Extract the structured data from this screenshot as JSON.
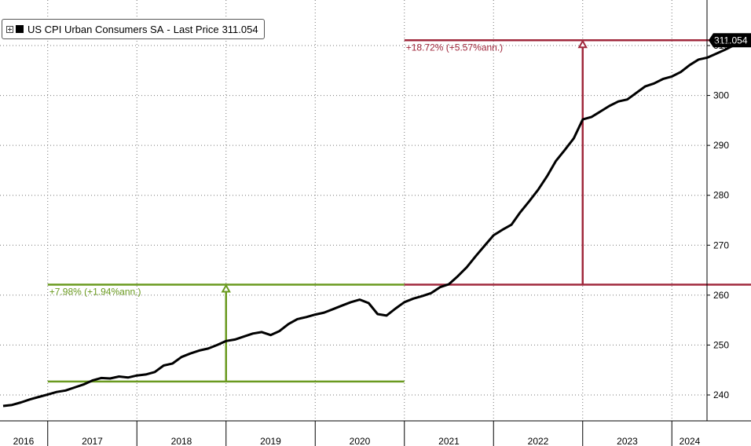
{
  "legend": {
    "series_name": "US CPI Urban Consumers SA",
    "separator": "-",
    "price_label": "Last Price",
    "price_value": "311.054",
    "swatch_color": "#000000"
  },
  "chart_data": {
    "type": "line",
    "title": "",
    "xlabel": "",
    "ylabel": "",
    "ylim": [
      238,
      315
    ],
    "xlim": [
      2016.0,
      2024.38
    ],
    "y_ticks": [
      240,
      250,
      260,
      270,
      280,
      290,
      300,
      310
    ],
    "y_tick_labels": [
      "240",
      "250",
      "260",
      "270",
      "280",
      "290",
      "300",
      "310"
    ],
    "x_ticks": [
      2016,
      2017,
      2018,
      2019,
      2020,
      2021,
      2022,
      2023,
      2024
    ],
    "x_tick_labels": [
      "2016",
      "2017",
      "2018",
      "2019",
      "2020",
      "2021",
      "2022",
      "2023",
      "2024"
    ],
    "grid": true,
    "legend_position": "top-left",
    "last_price": "311.054",
    "series": [
      {
        "name": "US CPI Urban Consumers SA",
        "color": "#000000",
        "x": [
          2016.0,
          2016.1,
          2016.2,
          2016.3,
          2016.4,
          2016.5,
          2016.6,
          2016.7,
          2016.8,
          2016.9,
          2017.0,
          2017.1,
          2017.2,
          2017.3,
          2017.4,
          2017.5,
          2017.6,
          2017.7,
          2017.8,
          2017.9,
          2018.0,
          2018.1,
          2018.2,
          2018.3,
          2018.4,
          2018.5,
          2018.6,
          2018.7,
          2018.8,
          2018.9,
          2019.0,
          2019.1,
          2019.2,
          2019.3,
          2019.4,
          2019.5,
          2019.6,
          2019.7,
          2019.8,
          2019.9,
          2020.0,
          2020.1,
          2020.2,
          2020.3,
          2020.4,
          2020.5,
          2020.6,
          2020.7,
          2020.8,
          2020.9,
          2021.0,
          2021.1,
          2021.2,
          2021.3,
          2021.4,
          2021.5,
          2021.6,
          2021.7,
          2021.8,
          2021.9,
          2022.0,
          2022.1,
          2022.2,
          2022.3,
          2022.4,
          2022.5,
          2022.6,
          2022.7,
          2022.8,
          2022.9,
          2023.0,
          2023.1,
          2023.2,
          2023.3,
          2023.4,
          2023.5,
          2023.6,
          2023.7,
          2023.8,
          2023.9,
          2024.0,
          2024.1,
          2024.2,
          2024.33
        ],
        "values": [
          237.8,
          238.0,
          238.5,
          239.1,
          239.6,
          240.1,
          240.6,
          240.9,
          241.5,
          242.1,
          242.9,
          243.4,
          243.3,
          243.7,
          243.5,
          243.9,
          244.1,
          244.6,
          245.9,
          246.3,
          247.6,
          248.3,
          248.9,
          249.3,
          250.0,
          250.8,
          251.1,
          251.7,
          252.3,
          252.6,
          252.0,
          252.8,
          254.2,
          255.2,
          255.6,
          256.1,
          256.5,
          257.2,
          257.9,
          258.6,
          259.1,
          258.4,
          256.2,
          255.9,
          257.3,
          258.6,
          259.3,
          259.8,
          260.4,
          261.6,
          262.2,
          263.8,
          265.6,
          267.8,
          269.9,
          272.0,
          273.1,
          274.1,
          276.6,
          278.8,
          281.1,
          283.8,
          286.9,
          289.1,
          291.4,
          295.2,
          295.7,
          296.8,
          297.9,
          298.8,
          299.2,
          300.5,
          301.8,
          302.4,
          303.3,
          303.8,
          304.7,
          306.1,
          307.2,
          307.6,
          308.4,
          309.2,
          310.1,
          311.054
        ]
      }
    ],
    "annotations": [
      {
        "label": "+7.98% (+1.94%ann.)",
        "color": "#6a9a1f",
        "x_start": 2016.0,
        "x_end": 2020.0,
        "y_low": 242.7,
        "y_high": 262.1,
        "arrow_x": 2018.0,
        "label_x": 2016.0
      },
      {
        "label": "+18.72% (+5.57%ann.)",
        "color": "#a0283c",
        "x_start": 2020.0,
        "x_end": 2024.33,
        "y_low": 262.1,
        "y_high": 311.054,
        "arrow_x": 2022.0,
        "label_x": 2020.0
      }
    ]
  }
}
